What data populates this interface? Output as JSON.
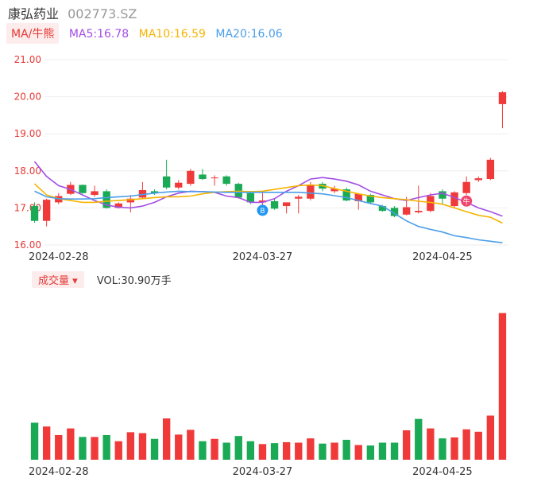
{
  "header": {
    "stock_name": "康弘药业",
    "stock_code": "002773.SZ"
  },
  "ma_legend": {
    "selector_label": "MA/牛熊",
    "items": [
      {
        "text": "MA5:16.78",
        "color": "#a24ee6"
      },
      {
        "text": "MA10:16.59",
        "color": "#f5b400"
      },
      {
        "text": "MA20:16.06",
        "color": "#4a9ee8"
      }
    ]
  },
  "volume_header": {
    "selector_label": "成交量",
    "value_text": "VOL:30.90万手"
  },
  "colors": {
    "up": "#f03a3a",
    "down": "#1aaa55",
    "grid": "#eeeeee",
    "marker_blue": "#2196f3",
    "marker_red": "#f0456c"
  },
  "markers": [
    {
      "label": "B",
      "index": 19,
      "color": "#2196f3"
    },
    {
      "label": "牛",
      "index": 36,
      "color": "#f0456c"
    }
  ],
  "chart_data": [
    {
      "type": "candlestick",
      "title": "",
      "ylim": [
        16.0,
        21.0
      ],
      "y_ticks": [
        "21.00",
        "20.00",
        "19.00",
        "18.00",
        "17.00",
        "16.00"
      ],
      "x_tick_labels": [
        {
          "index": 2,
          "label": "2024-02-28"
        },
        {
          "index": 19,
          "label": "2024-03-27"
        },
        {
          "index": 34,
          "label": "2024-04-25"
        }
      ],
      "candles": [
        {
          "o": 17.05,
          "h": 17.15,
          "c": 16.65,
          "l": 16.6
        },
        {
          "o": 16.65,
          "h": 17.25,
          "c": 17.22,
          "l": 16.5
        },
        {
          "o": 17.15,
          "h": 17.4,
          "c": 17.32,
          "l": 17.1
        },
        {
          "o": 17.38,
          "h": 17.7,
          "c": 17.62,
          "l": 17.35
        },
        {
          "o": 17.62,
          "h": 17.63,
          "c": 17.4,
          "l": 17.38
        },
        {
          "o": 17.35,
          "h": 17.6,
          "c": 17.45,
          "l": 17.3
        },
        {
          "o": 17.45,
          "h": 17.5,
          "c": 17.0,
          "l": 16.98
        },
        {
          "o": 17.0,
          "h": 17.15,
          "c": 17.12,
          "l": 16.98
        },
        {
          "o": 17.15,
          "h": 17.35,
          "c": 17.25,
          "l": 16.88
        },
        {
          "o": 17.28,
          "h": 17.7,
          "c": 17.48,
          "l": 17.25
        },
        {
          "o": 17.45,
          "h": 17.5,
          "c": 17.4,
          "l": 17.35
        },
        {
          "o": 17.85,
          "h": 18.3,
          "c": 17.55,
          "l": 17.5
        },
        {
          "o": 17.55,
          "h": 17.75,
          "c": 17.68,
          "l": 17.5
        },
        {
          "o": 17.65,
          "h": 18.05,
          "c": 18.0,
          "l": 17.6
        },
        {
          "o": 17.9,
          "h": 18.05,
          "c": 17.78,
          "l": 17.75
        },
        {
          "o": 17.8,
          "h": 17.88,
          "c": 17.82,
          "l": 17.6
        },
        {
          "o": 17.85,
          "h": 17.88,
          "c": 17.65,
          "l": 17.6
        },
        {
          "o": 17.65,
          "h": 17.68,
          "c": 17.28,
          "l": 17.25
        },
        {
          "o": 17.4,
          "h": 17.45,
          "c": 17.15,
          "l": 17.1
        },
        {
          "o": 17.15,
          "h": 17.45,
          "c": 17.2,
          "l": 17.05
        },
        {
          "o": 17.18,
          "h": 17.25,
          "c": 16.98,
          "l": 16.95
        },
        {
          "o": 17.05,
          "h": 17.15,
          "c": 17.15,
          "l": 16.85
        },
        {
          "o": 17.25,
          "h": 17.35,
          "c": 17.3,
          "l": 16.85
        },
        {
          "o": 17.25,
          "h": 17.7,
          "c": 17.62,
          "l": 17.2
        },
        {
          "o": 17.65,
          "h": 17.7,
          "c": 17.52,
          "l": 17.45
        },
        {
          "o": 17.45,
          "h": 17.6,
          "c": 17.52,
          "l": 17.4
        },
        {
          "o": 17.5,
          "h": 17.55,
          "c": 17.2,
          "l": 17.18
        },
        {
          "o": 17.18,
          "h": 17.4,
          "c": 17.38,
          "l": 16.95
        },
        {
          "o": 17.35,
          "h": 17.38,
          "c": 17.15,
          "l": 17.1
        },
        {
          "o": 17.05,
          "h": 17.08,
          "c": 16.92,
          "l": 16.9
        },
        {
          "o": 17.0,
          "h": 17.05,
          "c": 16.78,
          "l": 16.75
        },
        {
          "o": 16.82,
          "h": 17.3,
          "c": 17.02,
          "l": 16.8
        },
        {
          "o": 16.88,
          "h": 17.6,
          "c": 16.92,
          "l": 16.85
        },
        {
          "o": 16.92,
          "h": 17.4,
          "c": 17.32,
          "l": 16.88
        },
        {
          "o": 17.45,
          "h": 17.5,
          "c": 17.25,
          "l": 17.1
        },
        {
          "o": 17.05,
          "h": 17.45,
          "c": 17.42,
          "l": 17.0
        },
        {
          "o": 17.4,
          "h": 17.85,
          "c": 17.7,
          "l": 17.35
        },
        {
          "o": 17.75,
          "h": 17.85,
          "c": 17.8,
          "l": 17.7
        },
        {
          "o": 17.78,
          "h": 18.35,
          "c": 18.3,
          "l": 17.75
        },
        {
          "o": 19.8,
          "h": 20.15,
          "c": 20.12,
          "l": 19.15
        }
      ],
      "ma": [
        {
          "name": "MA5",
          "color": "#a24ee6",
          "points": [
            [
              0,
              18.25
            ],
            [
              1,
              17.85
            ],
            [
              2,
              17.6
            ],
            [
              3,
              17.5
            ],
            [
              4,
              17.35
            ],
            [
              5,
              17.2
            ],
            [
              6,
              17.08
            ],
            [
              7,
              17.02
            ],
            [
              8,
              17.0
            ],
            [
              9,
              17.05
            ],
            [
              10,
              17.15
            ],
            [
              11,
              17.3
            ],
            [
              12,
              17.4
            ],
            [
              13,
              17.45
            ],
            [
              14,
              17.44
            ],
            [
              15,
              17.42
            ],
            [
              16,
              17.32
            ],
            [
              17,
              17.28
            ],
            [
              18,
              17.15
            ],
            [
              19,
              17.15
            ],
            [
              20,
              17.25
            ],
            [
              21,
              17.45
            ],
            [
              22,
              17.6
            ],
            [
              23,
              17.78
            ],
            [
              24,
              17.82
            ],
            [
              25,
              17.78
            ],
            [
              26,
              17.72
            ],
            [
              27,
              17.62
            ],
            [
              28,
              17.45
            ],
            [
              29,
              17.35
            ],
            [
              30,
              17.25
            ],
            [
              31,
              17.2
            ],
            [
              32,
              17.28
            ],
            [
              33,
              17.35
            ],
            [
              34,
              17.4
            ],
            [
              35,
              17.28
            ],
            [
              36,
              17.15
            ],
            [
              37,
              17.0
            ],
            [
              38,
              16.9
            ],
            [
              39,
              16.78
            ]
          ]
        },
        {
          "name": "MA10",
          "color": "#f5b400",
          "points": [
            [
              0,
              17.65
            ],
            [
              1,
              17.35
            ],
            [
              2,
              17.25
            ],
            [
              3,
              17.2
            ],
            [
              4,
              17.15
            ],
            [
              5,
              17.15
            ],
            [
              6,
              17.18
            ],
            [
              7,
              17.2
            ],
            [
              8,
              17.22
            ],
            [
              9,
              17.25
            ],
            [
              10,
              17.28
            ],
            [
              11,
              17.3
            ],
            [
              12,
              17.3
            ],
            [
              13,
              17.32
            ],
            [
              14,
              17.38
            ],
            [
              15,
              17.42
            ],
            [
              16,
              17.44
            ],
            [
              17,
              17.45
            ],
            [
              18,
              17.44
            ],
            [
              19,
              17.45
            ],
            [
              20,
              17.5
            ],
            [
              21,
              17.55
            ],
            [
              22,
              17.6
            ],
            [
              23,
              17.62
            ],
            [
              24,
              17.6
            ],
            [
              25,
              17.52
            ],
            [
              26,
              17.45
            ],
            [
              27,
              17.38
            ],
            [
              28,
              17.32
            ],
            [
              29,
              17.28
            ],
            [
              30,
              17.25
            ],
            [
              31,
              17.22
            ],
            [
              32,
              17.18
            ],
            [
              33,
              17.15
            ],
            [
              34,
              17.1
            ],
            [
              35,
              17.0
            ],
            [
              36,
              16.9
            ],
            [
              37,
              16.8
            ],
            [
              38,
              16.75
            ],
            [
              39,
              16.59
            ]
          ]
        },
        {
          "name": "MA20",
          "color": "#4a9ee8",
          "points": [
            [
              0,
              17.45
            ],
            [
              1,
              17.3
            ],
            [
              2,
              17.25
            ],
            [
              3,
              17.24
            ],
            [
              4,
              17.24
            ],
            [
              5,
              17.25
            ],
            [
              6,
              17.28
            ],
            [
              7,
              17.3
            ],
            [
              8,
              17.32
            ],
            [
              9,
              17.36
            ],
            [
              10,
              17.4
            ],
            [
              11,
              17.43
            ],
            [
              12,
              17.45
            ],
            [
              13,
              17.44
            ],
            [
              14,
              17.44
            ],
            [
              15,
              17.43
            ],
            [
              16,
              17.42
            ],
            [
              17,
              17.42
            ],
            [
              18,
              17.42
            ],
            [
              19,
              17.42
            ],
            [
              20,
              17.42
            ],
            [
              21,
              17.42
            ],
            [
              22,
              17.42
            ],
            [
              23,
              17.4
            ],
            [
              24,
              17.38
            ],
            [
              25,
              17.33
            ],
            [
              26,
              17.28
            ],
            [
              27,
              17.2
            ],
            [
              28,
              17.12
            ],
            [
              29,
              17.05
            ],
            [
              30,
              16.85
            ],
            [
              31,
              16.65
            ],
            [
              32,
              16.5
            ],
            [
              33,
              16.42
            ],
            [
              34,
              16.35
            ],
            [
              35,
              16.25
            ],
            [
              36,
              16.2
            ],
            [
              37,
              16.14
            ],
            [
              38,
              16.1
            ],
            [
              39,
              16.06
            ]
          ]
        }
      ]
    },
    {
      "type": "bar",
      "title": "",
      "unit": "万手",
      "ylim": [
        0,
        31
      ],
      "x_tick_labels": [
        {
          "index": 2,
          "label": "2024-02-28"
        },
        {
          "index": 19,
          "label": "2024-03-27"
        },
        {
          "index": 34,
          "label": "2024-04-25"
        }
      ],
      "bars": [
        {
          "v": 7.8,
          "d": "down"
        },
        {
          "v": 7.0,
          "d": "up"
        },
        {
          "v": 5.2,
          "d": "up"
        },
        {
          "v": 6.6,
          "d": "up"
        },
        {
          "v": 4.8,
          "d": "down"
        },
        {
          "v": 4.8,
          "d": "up"
        },
        {
          "v": 5.2,
          "d": "down"
        },
        {
          "v": 3.9,
          "d": "up"
        },
        {
          "v": 5.8,
          "d": "up"
        },
        {
          "v": 5.6,
          "d": "up"
        },
        {
          "v": 4.4,
          "d": "down"
        },
        {
          "v": 8.7,
          "d": "up"
        },
        {
          "v": 5.3,
          "d": "up"
        },
        {
          "v": 6.3,
          "d": "up"
        },
        {
          "v": 3.9,
          "d": "down"
        },
        {
          "v": 4.4,
          "d": "up"
        },
        {
          "v": 3.6,
          "d": "down"
        },
        {
          "v": 5.0,
          "d": "down"
        },
        {
          "v": 3.9,
          "d": "down"
        },
        {
          "v": 3.3,
          "d": "up"
        },
        {
          "v": 3.5,
          "d": "down"
        },
        {
          "v": 3.7,
          "d": "up"
        },
        {
          "v": 3.6,
          "d": "up"
        },
        {
          "v": 4.5,
          "d": "up"
        },
        {
          "v": 3.4,
          "d": "down"
        },
        {
          "v": 3.6,
          "d": "up"
        },
        {
          "v": 4.2,
          "d": "down"
        },
        {
          "v": 3.1,
          "d": "up"
        },
        {
          "v": 3.0,
          "d": "down"
        },
        {
          "v": 3.6,
          "d": "down"
        },
        {
          "v": 3.6,
          "d": "down"
        },
        {
          "v": 6.2,
          "d": "up"
        },
        {
          "v": 8.6,
          "d": "down"
        },
        {
          "v": 6.6,
          "d": "up"
        },
        {
          "v": 4.5,
          "d": "down"
        },
        {
          "v": 4.7,
          "d": "up"
        },
        {
          "v": 6.4,
          "d": "up"
        },
        {
          "v": 5.9,
          "d": "up"
        },
        {
          "v": 9.3,
          "d": "up"
        },
        {
          "v": 30.9,
          "d": "up"
        }
      ]
    }
  ]
}
